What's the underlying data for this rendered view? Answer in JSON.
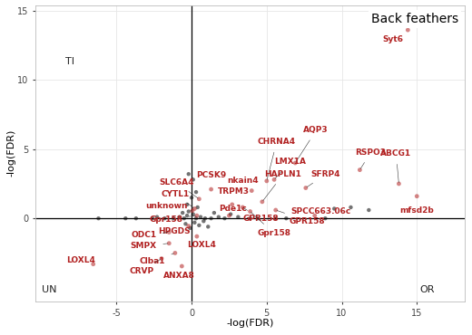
{
  "chart_data": {
    "type": "scatter",
    "title": "Back feathers",
    "xlabel": "-log(FDR)",
    "ylabel": "-log(FDR)",
    "xlim": [
      -10.4,
      18.2
    ],
    "ylim": [
      -6,
      15.4
    ],
    "xticks": [
      -5,
      0,
      5,
      10,
      15
    ],
    "yticks": [
      0,
      5,
      10,
      15
    ],
    "grid": true,
    "annotations": [
      "TI",
      "UN",
      "OR"
    ],
    "series": [
      {
        "color": "#000000",
        "x": [
          -6.2,
          -4.4,
          -3.7,
          -2.6,
          -2.3,
          -1.8,
          -1.2,
          -0.8,
          -0.5,
          -0.3,
          -0.2,
          0.1,
          0.3,
          0.6,
          0.9,
          1.3,
          1.8,
          2.2,
          3.1,
          3.9,
          4.4,
          5.6,
          6.3,
          8.9,
          9.5,
          10.6,
          11.8,
          -0.4,
          -0.1,
          0.2,
          0.5,
          0.8,
          1.1,
          -0.6,
          -0.3,
          0.0,
          0.4,
          1.5,
          2.6,
          -0.2,
          0.1,
          0.3
        ],
        "values": [
          0.0,
          0.0,
          0.0,
          0.0,
          0.1,
          0.0,
          0.0,
          0.1,
          0.0,
          0.2,
          0.5,
          0.3,
          0.0,
          0.1,
          0.0,
          0.0,
          0.1,
          0.0,
          0.1,
          0.0,
          0.0,
          0.0,
          0.0,
          0.0,
          0.7,
          0.8,
          0.6,
          -0.4,
          -0.7,
          -0.3,
          -0.5,
          -0.2,
          -0.6,
          0.4,
          1.0,
          1.5,
          0.8,
          0.4,
          0.3,
          3.2,
          2.8,
          1.9
        ]
      },
      {
        "color": "#b22222",
        "x": [
          14.4,
          6.9,
          11.2,
          5.0,
          1.3,
          0.5,
          4.0,
          5.5,
          2.7,
          4.7,
          13.8,
          7.6,
          0.2,
          15.0,
          0.05,
          2.5,
          0.35,
          3.4,
          3.9,
          5.6,
          8.2,
          -0.2,
          -1.5,
          -1.5,
          0.35,
          -1.1,
          -2.0,
          -0.65,
          -6.55
        ],
        "values": [
          13.6,
          4.0,
          3.5,
          2.7,
          2.1,
          1.4,
          2.0,
          2.8,
          1.0,
          1.2,
          2.5,
          2.2,
          0.7,
          1.6,
          0.55,
          0.2,
          0.2,
          0.8,
          0.5,
          0.6,
          0.2,
          -0.55,
          -1.0,
          -1.8,
          -1.3,
          -2.5,
          -2.9,
          -3.45,
          -3.3
        ],
        "labels": [
          "Syt6",
          "AQP3",
          "RSPO3",
          "CHRNA4",
          "PCSK9",
          "SLC6A4",
          "nkain4",
          "LMX1A",
          "TRPM3",
          "HAPLN1",
          "ABCG1",
          "SFRP4",
          "CYTL1",
          "mfsd2b",
          "unknown",
          "Pde1c",
          "Gpr158",
          "GPR158",
          "Gpr158",
          "GPR158",
          "SPCC663.06c",
          "HPGDS",
          "ODC1",
          "SMPX",
          "LOXL4",
          "Clba1",
          "CRVP",
          "ANXA8",
          "LOXL4"
        ]
      }
    ]
  }
}
